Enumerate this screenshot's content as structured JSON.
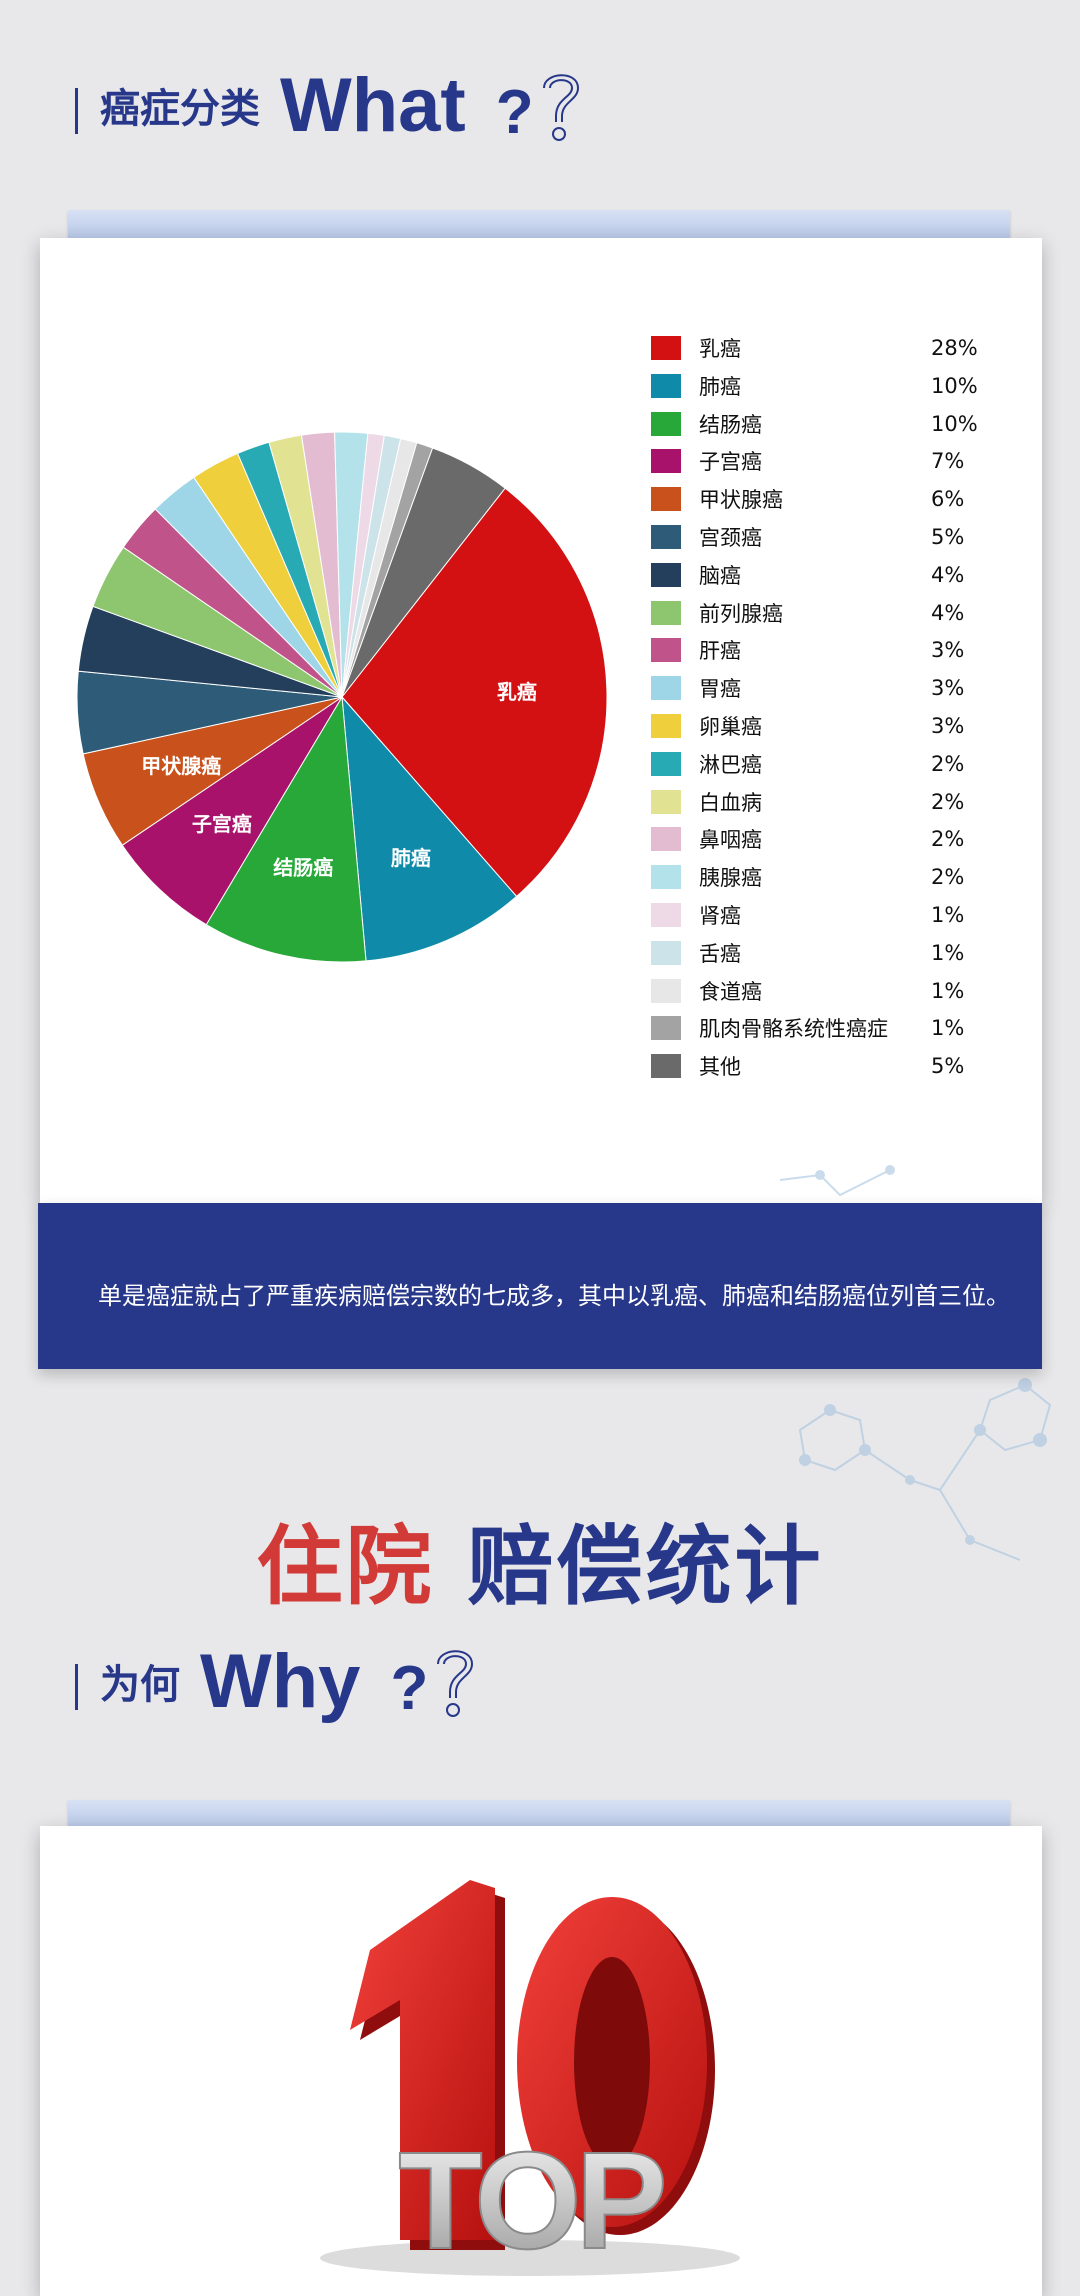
{
  "section1": {
    "title_cn": "癌症分类",
    "title_en": "What",
    "qmark": "?"
  },
  "chart_data": {
    "type": "pie",
    "categories": [
      "乳癌",
      "肺癌",
      "结肠癌",
      "子宫癌",
      "甲状腺癌",
      "宫颈癌",
      "脑癌",
      "前列腺癌",
      "肝癌",
      "胃癌",
      "卵巢癌",
      "淋巴癌",
      "白血病",
      "鼻咽癌",
      "胰腺癌",
      "肾癌",
      "舌癌",
      "食道癌",
      "肌肉骨骼系统性癌症",
      "其他"
    ],
    "values": [
      28,
      10,
      10,
      7,
      6,
      5,
      4,
      4,
      3,
      3,
      3,
      2,
      2,
      2,
      2,
      1,
      1,
      1,
      1,
      5
    ],
    "percent_labels": [
      "28%",
      "10%",
      "10%",
      "7%",
      "6%",
      "5%",
      "4%",
      "4%",
      "3%",
      "3%",
      "3%",
      "2%",
      "2%",
      "2%",
      "2%",
      "1%",
      "1%",
      "1%",
      "1%",
      "5%"
    ],
    "colors": [
      "#d31012",
      "#0f8aa8",
      "#27a839",
      "#a8126a",
      "#c9521c",
      "#2e5c78",
      "#233f5c",
      "#8ec66f",
      "#c0548a",
      "#9ed6e8",
      "#efd03c",
      "#28aab4",
      "#e2e392",
      "#e3bcd2",
      "#b3e2ea",
      "#eed9e6",
      "#cde3ea",
      "#e7e7e7",
      "#a3a3a3",
      "#6a6a6a"
    ],
    "slice_labels_shown": [
      "乳癌",
      "肺癌",
      "结肠癌",
      "子宫癌",
      "甲状腺癌"
    ],
    "legend_position": "right"
  },
  "banner": {
    "text": "单是癌症就占了严重疾病赔偿宗数的七成多，其中以乳癌、肺癌和结肠癌位列首三位。"
  },
  "headline": {
    "part1": "住院",
    "part2": "赔偿统计"
  },
  "section2": {
    "title_cn": "为何",
    "title_en": "Why",
    "qmark": "?"
  },
  "top10": {
    "number": "10",
    "word": "TOP"
  }
}
